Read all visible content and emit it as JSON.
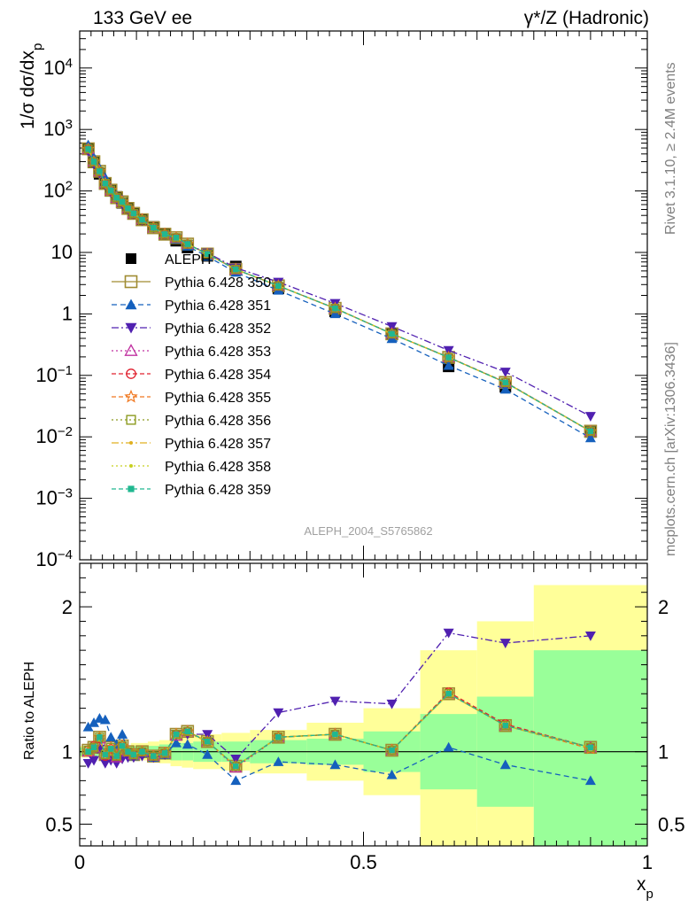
{
  "header": {
    "left": "133 GeV ee",
    "right": "γ*/Z (Hadronic)"
  },
  "side": {
    "rivet": "Rivet 3.1.10, ≥ 2.4M events",
    "mcplots": "mcplots.cern.ch [arXiv:1306.3436]"
  },
  "reference_label": "ALEPH_2004_S5765862",
  "chart_data": [
    {
      "type": "scatter",
      "panel": "main",
      "ylabel": "1/σ dσ/dx_p",
      "yscale": "log",
      "ylim": [
        0.0001,
        40000
      ],
      "xlim": [
        0,
        1
      ],
      "y_tick_labels": [
        "10^-4",
        "10^-3",
        "10^-2",
        "10^-1",
        "1",
        "10",
        "10^2",
        "10^3",
        "10^4"
      ],
      "x": [
        0.015,
        0.025,
        0.035,
        0.045,
        0.055,
        0.065,
        0.075,
        0.085,
        0.095,
        0.11,
        0.13,
        0.15,
        0.17,
        0.19,
        0.225,
        0.275,
        0.35,
        0.45,
        0.55,
        0.65,
        0.75,
        0.9
      ],
      "series": [
        {
          "name": "ALEPH",
          "color": "#000000",
          "marker": "filled-square",
          "dash": "",
          "values": [
            480,
            290,
            190,
            135,
            100,
            80,
            64,
            52,
            44,
            34,
            26,
            20,
            15.5,
            12,
            8.8,
            5.9,
            2.6,
            1.1,
            0.47,
            0.14,
            0.065,
            0.012
          ]
        },
        {
          "name": "Pythia 6.428 350",
          "color": "#a08c32",
          "marker": "open-square",
          "dash": "",
          "ratio": [
            1.01,
            1.03,
            1.1,
            0.98,
            1.03,
            0.97,
            1.04,
            1.0,
            0.98,
            1.0,
            0.97,
            0.99,
            1.12,
            1.14,
            1.07,
            0.9,
            1.1,
            1.12,
            1.01,
            1.4,
            1.18,
            1.03
          ]
        },
        {
          "name": "Pythia 6.428 351",
          "color": "#1560bd",
          "marker": "filled-triangle-up",
          "dash": "6 4",
          "ratio": [
            1.17,
            1.2,
            1.23,
            1.22,
            1.1,
            1.05,
            1.12,
            1.0,
            0.97,
            0.99,
            0.96,
            0.98,
            1.06,
            1.05,
            0.98,
            0.8,
            0.93,
            0.91,
            0.84,
            1.03,
            0.91,
            0.8
          ]
        },
        {
          "name": "Pythia 6.428 352",
          "color": "#5020b0",
          "marker": "filled-triangle-down",
          "dash": "8 3 2 3",
          "ratio": [
            0.92,
            0.94,
            1.02,
            0.92,
            0.94,
            0.92,
            0.95,
            0.96,
            0.96,
            0.97,
            0.96,
            0.98,
            1.12,
            1.12,
            1.12,
            0.95,
            1.27,
            1.35,
            1.33,
            1.82,
            1.75,
            1.8
          ]
        },
        {
          "name": "Pythia 6.428 353",
          "color": "#c030a0",
          "marker": "open-triangle-up",
          "dash": "2 3",
          "ratio": [
            1.0,
            1.03,
            1.09,
            0.98,
            1.02,
            0.96,
            1.04,
            1.0,
            0.98,
            1.0,
            0.97,
            0.99,
            1.11,
            1.14,
            1.07,
            0.89,
            1.1,
            1.12,
            1.01,
            1.4,
            1.18,
            1.03
          ]
        },
        {
          "name": "Pythia 6.428 354",
          "color": "#e0202e",
          "marker": "open-circle",
          "dash": "5 3",
          "ratio": [
            1.01,
            1.04,
            1.09,
            0.97,
            1.02,
            0.97,
            1.04,
            1.0,
            0.98,
            1.0,
            0.97,
            0.99,
            1.12,
            1.14,
            1.07,
            0.9,
            1.1,
            1.12,
            1.01,
            1.41,
            1.19,
            1.03
          ]
        },
        {
          "name": "Pythia 6.428 355",
          "color": "#f07820",
          "marker": "open-star",
          "dash": "5 3",
          "ratio": [
            1.0,
            1.03,
            1.1,
            0.98,
            1.03,
            0.97,
            1.04,
            1.0,
            0.98,
            1.0,
            0.97,
            0.99,
            1.12,
            1.14,
            1.07,
            0.9,
            1.1,
            1.12,
            1.01,
            1.4,
            1.18,
            1.02
          ]
        },
        {
          "name": "Pythia 6.428 356",
          "color": "#8c9a20",
          "marker": "open-square-small",
          "dash": "2 3",
          "ratio": [
            1.01,
            1.03,
            1.1,
            0.98,
            1.03,
            0.97,
            1.04,
            1.0,
            0.98,
            1.0,
            0.97,
            0.99,
            1.12,
            1.14,
            1.07,
            0.9,
            1.1,
            1.12,
            1.01,
            1.4,
            1.18,
            1.03
          ]
        },
        {
          "name": "Pythia 6.428 357",
          "color": "#e0b020",
          "marker": "small-dot",
          "dash": "8 3 2 3",
          "ratio": [
            1.0,
            1.03,
            1.09,
            0.98,
            1.02,
            0.97,
            1.04,
            1.0,
            0.98,
            1.0,
            0.97,
            0.99,
            1.11,
            1.13,
            1.07,
            0.9,
            1.1,
            1.12,
            1.01,
            1.4,
            1.18,
            1.03
          ]
        },
        {
          "name": "Pythia 6.428 358",
          "color": "#c8d020",
          "marker": "small-dot",
          "dash": "2 3",
          "ratio": [
            1.01,
            1.03,
            1.09,
            0.98,
            1.03,
            0.97,
            1.04,
            1.0,
            0.98,
            1.0,
            0.97,
            0.99,
            1.12,
            1.14,
            1.07,
            0.9,
            1.1,
            1.12,
            1.01,
            1.4,
            1.18,
            1.03
          ]
        },
        {
          "name": "Pythia 6.428 359",
          "color": "#20b890",
          "marker": "filled-square-small",
          "dash": "5 3",
          "ratio": [
            1.0,
            1.03,
            1.1,
            0.98,
            1.02,
            0.97,
            1.04,
            1.0,
            0.98,
            1.0,
            0.97,
            0.99,
            1.12,
            1.14,
            1.07,
            0.9,
            1.1,
            1.12,
            1.01,
            1.4,
            1.18,
            1.03
          ]
        }
      ]
    },
    {
      "type": "scatter",
      "panel": "ratio",
      "ylabel": "Ratio to ALEPH",
      "xlabel": "x_p",
      "ylim": [
        0.35,
        2.3
      ],
      "xlim": [
        0,
        1
      ],
      "x_tick_labels": [
        "0",
        "0.5",
        "1"
      ],
      "y_tick_labels": [
        "0.5",
        "1",
        "2"
      ],
      "bin_edges": [
        0.0,
        0.02,
        0.03,
        0.04,
        0.05,
        0.06,
        0.07,
        0.08,
        0.09,
        0.1,
        0.12,
        0.14,
        0.16,
        0.18,
        0.2,
        0.25,
        0.3,
        0.4,
        0.5,
        0.6,
        0.7,
        0.8,
        1.0
      ],
      "band_stat": [
        0.03,
        0.03,
        0.03,
        0.03,
        0.03,
        0.03,
        0.03,
        0.03,
        0.04,
        0.04,
        0.04,
        0.05,
        0.06,
        0.06,
        0.07,
        0.07,
        0.08,
        0.09,
        0.14,
        0.26,
        0.38,
        0.7
      ],
      "band_total": [
        0.04,
        0.04,
        0.04,
        0.04,
        0.04,
        0.04,
        0.04,
        0.04,
        0.06,
        0.06,
        0.07,
        0.08,
        0.1,
        0.11,
        0.12,
        0.13,
        0.15,
        0.2,
        0.3,
        0.7,
        0.9,
        1.15
      ]
    }
  ]
}
